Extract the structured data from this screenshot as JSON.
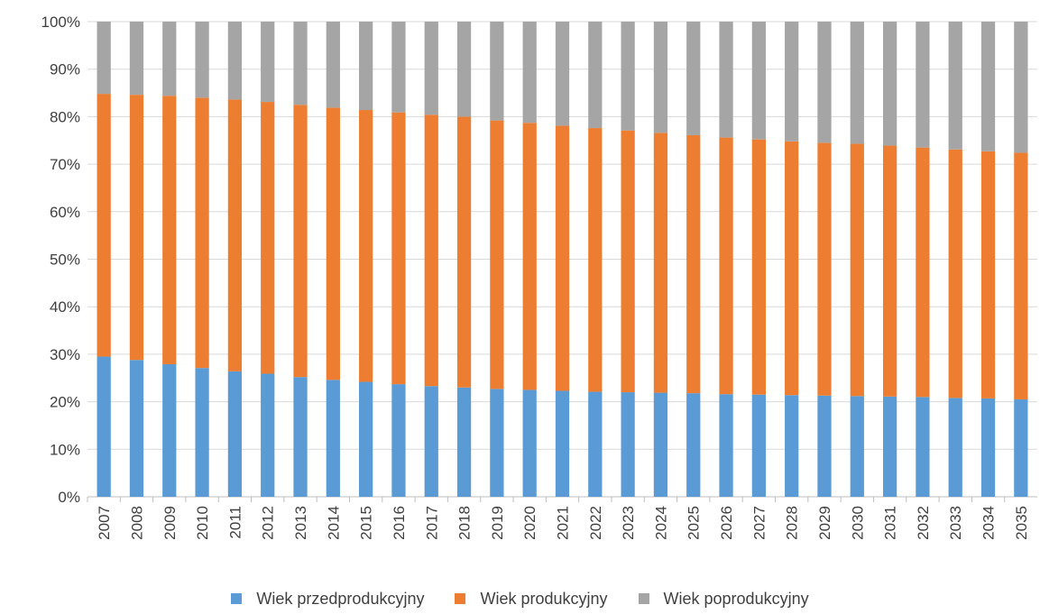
{
  "chart_data": {
    "type": "bar",
    "stacked": "percent",
    "categories": [
      "2007",
      "2008",
      "2009",
      "2010",
      "2011",
      "2012",
      "2013",
      "2014",
      "2015",
      "2016",
      "2017",
      "2018",
      "2019",
      "2020",
      "2021",
      "2022",
      "2023",
      "2024",
      "2025",
      "2026",
      "2027",
      "2028",
      "2029",
      "2030",
      "2031",
      "2032",
      "2033",
      "2034",
      "2035"
    ],
    "series": [
      {
        "name": "Wiek przedprodukcyjny",
        "color": "#5B9BD5",
        "values": [
          29.5,
          28.8,
          27.9,
          27.1,
          26.4,
          25.9,
          25.2,
          24.6,
          24.2,
          23.7,
          23.3,
          23.0,
          22.7,
          22.5,
          22.3,
          22.1,
          22.0,
          21.9,
          21.8,
          21.6,
          21.5,
          21.4,
          21.3,
          21.2,
          21.1,
          21.0,
          20.8,
          20.7,
          20.5
        ]
      },
      {
        "name": "Wiek produkcyjny",
        "color": "#ED7D31",
        "values": [
          55.3,
          55.8,
          56.5,
          56.9,
          57.2,
          57.2,
          57.3,
          57.3,
          57.2,
          57.2,
          57.1,
          57.0,
          56.5,
          56.2,
          55.8,
          55.5,
          55.1,
          54.7,
          54.3,
          54.0,
          53.7,
          53.4,
          53.2,
          53.1,
          52.8,
          52.5,
          52.3,
          52.0,
          51.9
        ]
      },
      {
        "name": "Wiek poprodukcyjny",
        "color": "#A5A5A5",
        "values": [
          15.2,
          15.4,
          15.6,
          16.0,
          16.4,
          16.9,
          17.5,
          18.1,
          18.6,
          19.1,
          19.6,
          20.0,
          20.8,
          21.3,
          21.9,
          22.4,
          22.9,
          23.4,
          23.9,
          24.4,
          24.8,
          25.2,
          25.5,
          25.7,
          26.1,
          26.5,
          26.9,
          27.3,
          27.6
        ]
      }
    ],
    "ylim": [
      0,
      100
    ],
    "yticks": [
      "0%",
      "10%",
      "20%",
      "30%",
      "40%",
      "50%",
      "60%",
      "70%",
      "80%",
      "90%",
      "100%"
    ],
    "grid": true,
    "legend_position": "bottom"
  }
}
